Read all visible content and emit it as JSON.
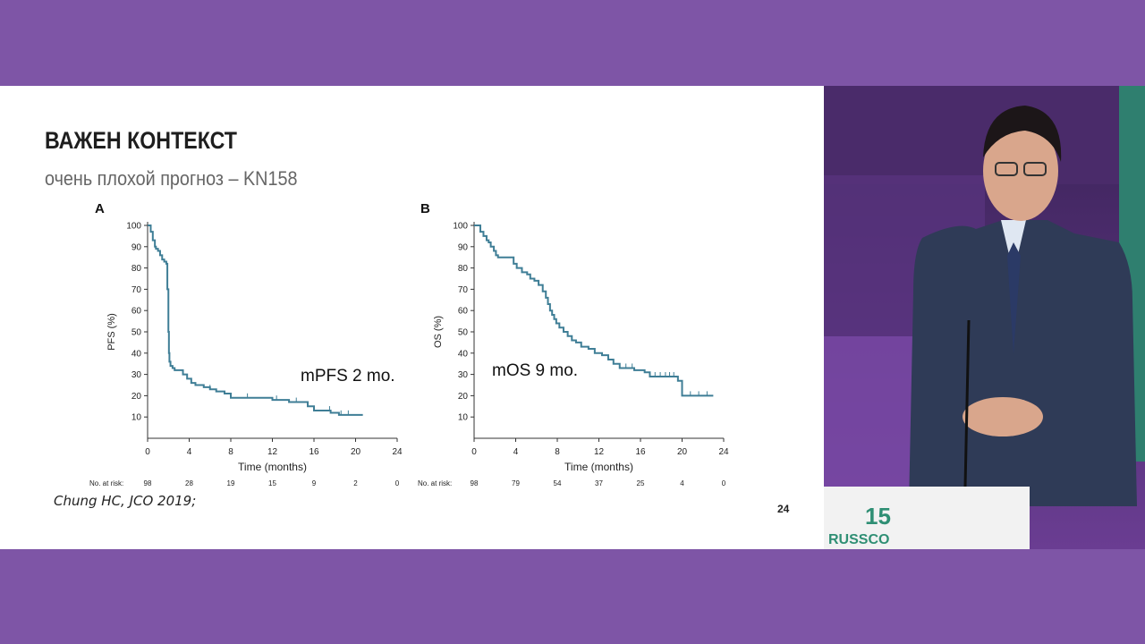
{
  "slide": {
    "title": "ВАЖЕН КОНТЕКСТ",
    "subtitle": "очень плохой прогноз – KN158",
    "citation": "Chung HC, JCO 2019;",
    "page_number": "24"
  },
  "colors": {
    "band": "#7e55a6",
    "curve": "#3f7e96",
    "axis": "#333333"
  },
  "chart_data": [
    {
      "type": "line",
      "panel": "A",
      "ylabel": "PFS (%)",
      "xlabel": "Time (months)",
      "xlim": [
        0,
        24
      ],
      "ylim": [
        0,
        100
      ],
      "x_ticks": [
        0,
        4,
        8,
        12,
        16,
        20,
        24
      ],
      "y_ticks": [
        10,
        20,
        30,
        40,
        50,
        60,
        70,
        80,
        90,
        100
      ],
      "annotation": "mPFS 2 mo.",
      "risk_label": "No. at risk:",
      "at_risk": [
        98,
        28,
        19,
        15,
        9,
        2,
        0
      ],
      "series": [
        {
          "step": true,
          "x": [
            0,
            0.3,
            0.5,
            0.7,
            0.8,
            1.0,
            1.2,
            1.4,
            1.6,
            1.8,
            1.9,
            2.0,
            2.05,
            2.1,
            2.2,
            2.4,
            2.6,
            3.4,
            3.8,
            4.2,
            4.6,
            5.4,
            6.0,
            6.6,
            7.4,
            8.0,
            12.0,
            13.6,
            15.4,
            16.0,
            17.6,
            18.0,
            18.4,
            20.7
          ],
          "y": [
            100,
            97,
            93,
            90,
            89,
            88,
            86,
            84,
            83,
            82,
            70,
            50,
            40,
            36,
            34,
            33,
            32,
            30,
            28,
            26,
            25,
            24,
            23,
            22,
            21,
            19,
            18,
            17,
            15,
            13,
            12,
            12,
            11,
            11
          ]
        }
      ],
      "censor_x": [
        6.0,
        9.6,
        12.4,
        14.3,
        16.0,
        17.5,
        18.6,
        19.3
      ]
    },
    {
      "type": "line",
      "panel": "B",
      "ylabel": "OS (%)",
      "xlabel": "Time (months)",
      "xlim": [
        0,
        24
      ],
      "ylim": [
        0,
        100
      ],
      "x_ticks": [
        0,
        4,
        8,
        12,
        16,
        20,
        24
      ],
      "y_ticks": [
        10,
        20,
        30,
        40,
        50,
        60,
        70,
        80,
        90,
        100
      ],
      "annotation": "mOS 9 mo.",
      "risk_label": "No. at risk:",
      "at_risk": [
        98,
        79,
        54,
        37,
        25,
        4,
        0
      ],
      "series": [
        {
          "step": true,
          "x": [
            0,
            0.6,
            0.9,
            1.2,
            1.4,
            1.6,
            1.9,
            2.1,
            2.3,
            3.8,
            4.1,
            4.6,
            5.1,
            5.4,
            5.8,
            6.2,
            6.6,
            6.9,
            7.1,
            7.3,
            7.5,
            7.7,
            7.9,
            8.2,
            8.6,
            9.0,
            9.4,
            9.8,
            10.3,
            11.0,
            11.6,
            12.3,
            12.9,
            13.4,
            14.0,
            15.4,
            16.4,
            16.9,
            19.6,
            20.0,
            23.0
          ],
          "y": [
            100,
            97,
            95,
            93,
            92,
            90,
            88,
            86,
            85,
            82,
            80,
            78,
            77,
            75,
            74,
            72,
            69,
            66,
            63,
            60,
            58,
            56,
            54,
            52,
            50,
            48,
            46,
            45,
            43,
            42,
            40,
            39,
            37,
            35,
            33,
            32,
            31,
            29,
            27,
            20,
            20
          ]
        }
      ],
      "censor_x": [
        14.6,
        15.2,
        17.4,
        17.9,
        18.4,
        18.8,
        19.2,
        20.8,
        21.6,
        22.4
      ]
    }
  ]
}
